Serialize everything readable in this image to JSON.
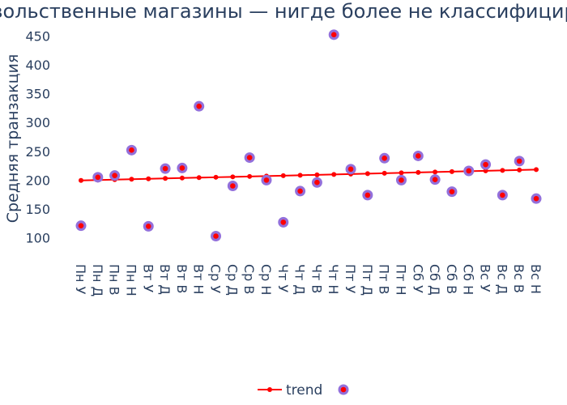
{
  "chart_data": {
    "type": "scatter",
    "title": "Непродовольственные магазины — нигде более не классифицированные",
    "xlabel": "",
    "ylabel": "Средняя транзакция",
    "ylim": [
      70,
      470
    ],
    "yticks": [
      100,
      150,
      200,
      250,
      300,
      350,
      400,
      450
    ],
    "grid": false,
    "legend_position": "bottom-center",
    "categories": [
      "Пн У",
      "Пн Д",
      "Пн В",
      "Пн Н",
      "Вт У",
      "Вт Д",
      "Вт В",
      "Вт Н",
      "Ср У",
      "Ср Д",
      "Ср В",
      "Ср Н",
      "Чт У",
      "Чт Д",
      "Чт В",
      "Чт Н",
      "Пт У",
      "Пт Д",
      "Пт В",
      "Пт Н",
      "Сб У",
      "Сб Д",
      "Сб В",
      "Сб Н",
      "Вс У",
      "Вс Д",
      "Вс В",
      "Вс Н"
    ],
    "series": [
      {
        "name": "",
        "type": "scatter",
        "marker_outer_color": "#9370db",
        "marker_inner_color": "#ff0000",
        "values": [
          121,
          205,
          208,
          252,
          120,
          220,
          221,
          328,
          103,
          190,
          239,
          200,
          127,
          181,
          196,
          452,
          219,
          174,
          238,
          200,
          242,
          201,
          180,
          216,
          227,
          174,
          233,
          168
        ]
      },
      {
        "name": "trend",
        "type": "line",
        "color": "#ff0000",
        "values": [
          199.4,
          200.1,
          200.8,
          201.5,
          202.2,
          202.9,
          203.6,
          204.3,
          205.0,
          205.7,
          206.4,
          207.1,
          207.8,
          208.5,
          209.2,
          209.9,
          210.6,
          211.3,
          212.0,
          212.7,
          213.4,
          214.1,
          214.8,
          215.5,
          216.2,
          216.9,
          217.6,
          218.3
        ]
      }
    ]
  }
}
